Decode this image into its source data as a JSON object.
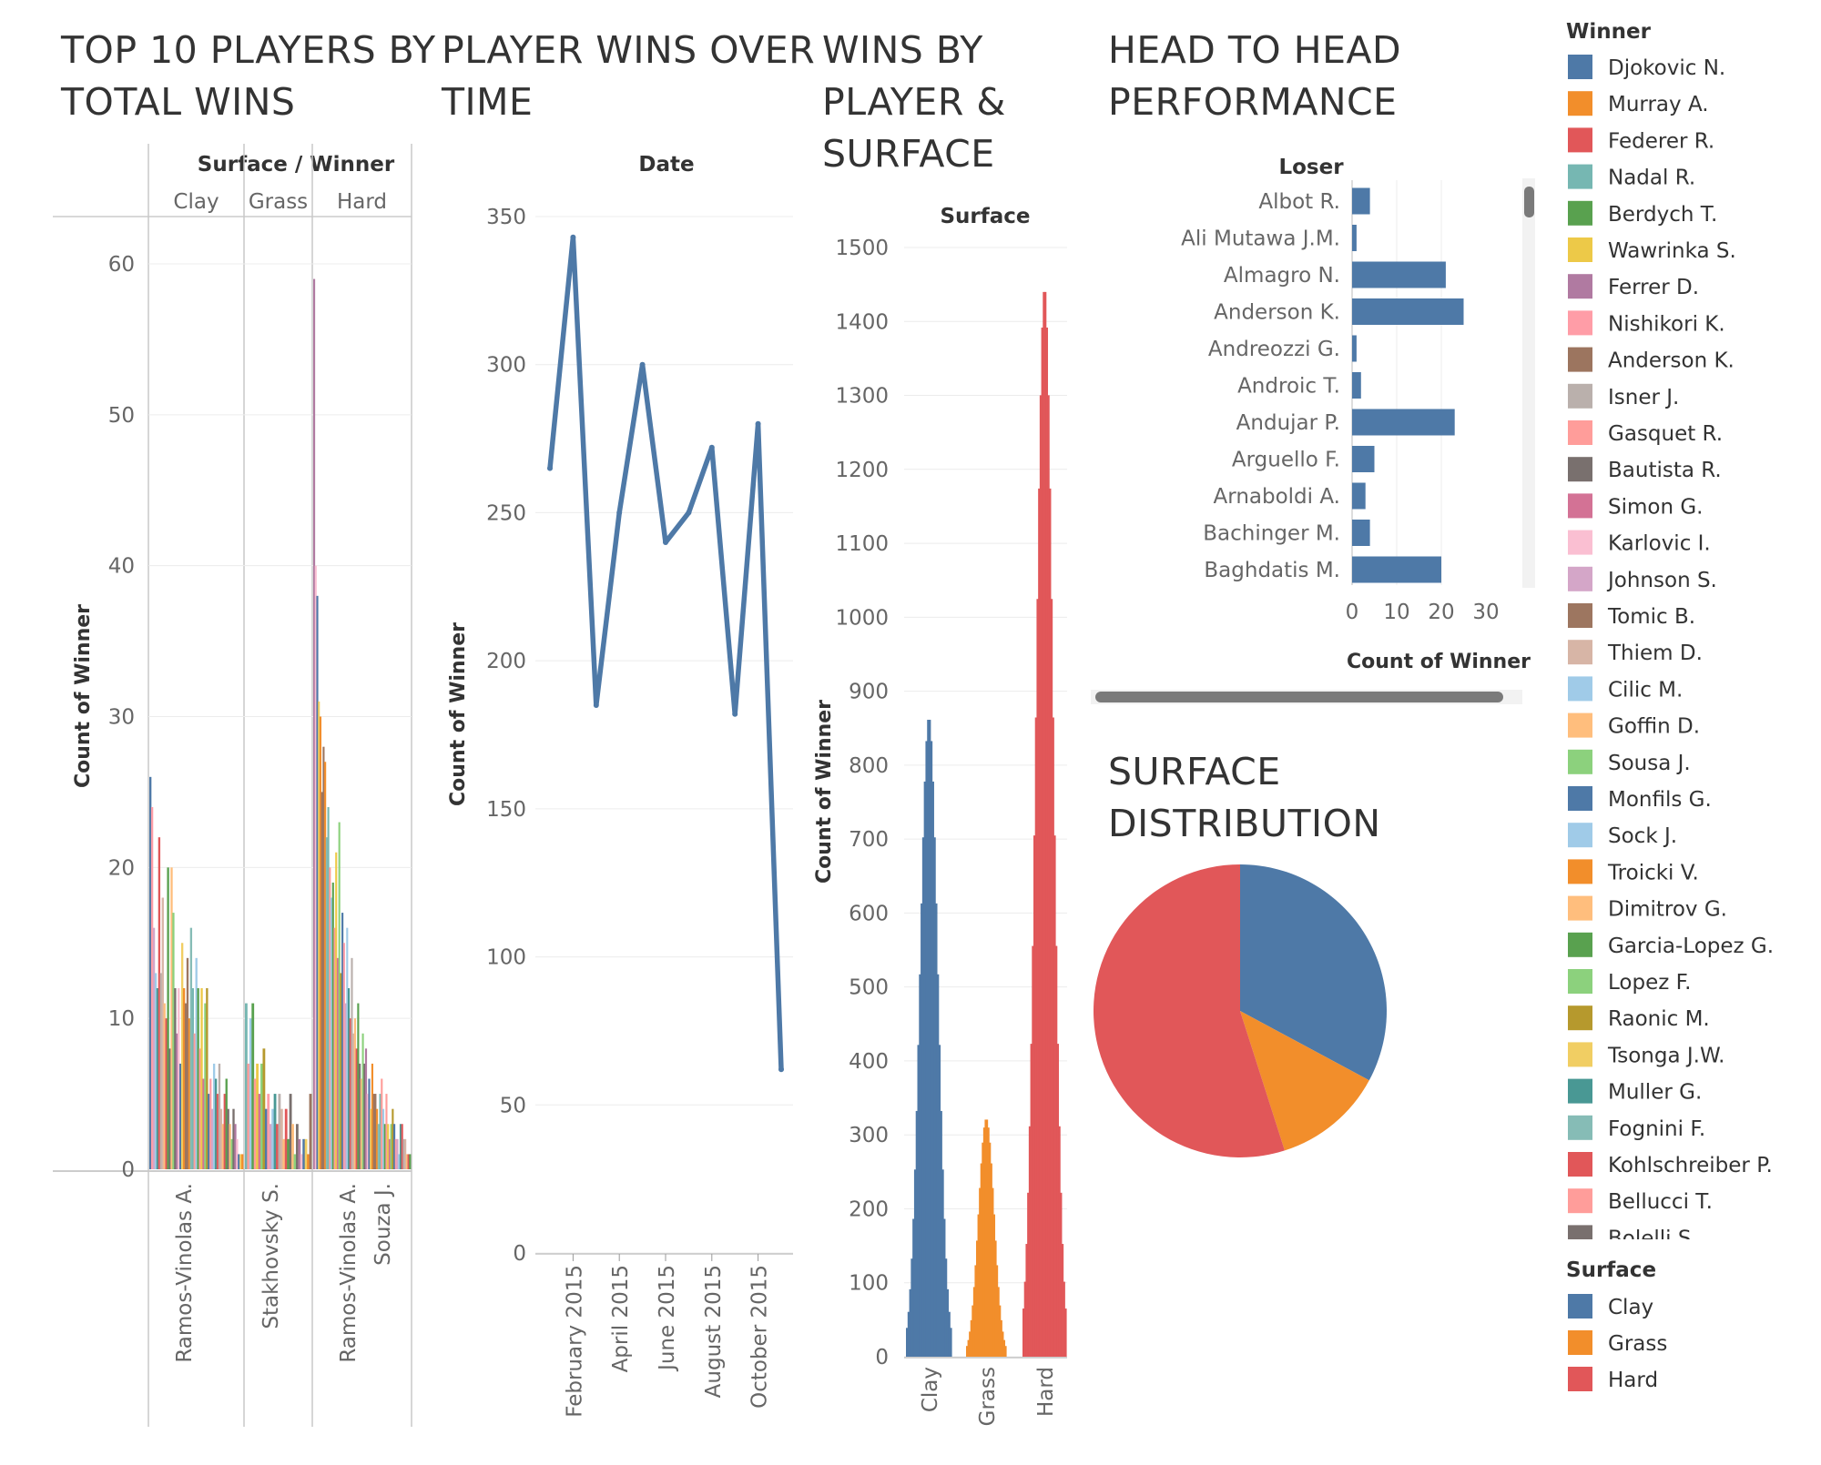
{
  "titles": {
    "top10": [
      "TOP 10 PLAYERS BY",
      "TOTAL WINS"
    ],
    "over_time": [
      "PLAYER WINS OVER",
      "TIME"
    ],
    "by_surface": [
      "WINS BY",
      "PLAYER &",
      "SURFACE"
    ],
    "h2h": [
      "HEAD TO HEAD",
      "PERFORMANCE"
    ],
    "pie": [
      "SURFACE",
      "DISTRIBUTION"
    ]
  },
  "colors": {
    "Clay": "#4e79a7",
    "Grass": "#f28e2b",
    "Hard": "#e15759",
    "line": "#4e79a7",
    "bar": "#4e79a7"
  },
  "chart_data": [
    {
      "type": "bar",
      "id": "top10",
      "header": "Surface / Winner",
      "panels": [
        "Clay",
        "Grass",
        "Hard"
      ],
      "ylabel": "Count of Winner",
      "ylim": [
        0,
        63
      ],
      "yticks": [
        0,
        10,
        20,
        30,
        40,
        50,
        60
      ],
      "panel_labels": [
        [
          "Ramos-Vinolas A."
        ],
        [
          "Stakhovsky S."
        ],
        [
          "Ramos-Vinolas A.",
          "Souza J."
        ]
      ],
      "series": [
        {
          "name": "Clay",
          "values": [
            26,
            24,
            16,
            13,
            12,
            22,
            13,
            18,
            11,
            10,
            20,
            8,
            20,
            17,
            12,
            9,
            12,
            7,
            15,
            12,
            11,
            14,
            10,
            16,
            12,
            9,
            14,
            12,
            8,
            12,
            6,
            11,
            12,
            5,
            6,
            4,
            7,
            6,
            5,
            7,
            4,
            3,
            5,
            6,
            4,
            3,
            2,
            4,
            3,
            2,
            1,
            1,
            1
          ]
        },
        {
          "name": "Grass",
          "values": [
            11,
            7,
            10,
            11,
            6,
            7,
            5,
            7,
            8,
            4,
            5,
            3,
            4,
            5,
            3,
            5,
            4,
            2,
            4,
            2,
            5,
            3,
            1,
            3,
            2,
            1,
            2,
            2,
            1,
            5
          ]
        },
        {
          "name": "Hard",
          "values": [
            59,
            40,
            38,
            31,
            30,
            25,
            28,
            27,
            22,
            24,
            20,
            18,
            19,
            16,
            21,
            14,
            23,
            13,
            17,
            15,
            11,
            16,
            12,
            10,
            14,
            9,
            10,
            8,
            11,
            7,
            6,
            9,
            7,
            8,
            5,
            6,
            4,
            7,
            5,
            5,
            4,
            3,
            5,
            6,
            4,
            3,
            5,
            3,
            2,
            3,
            4,
            3,
            2,
            2,
            1,
            3,
            3,
            2,
            2,
            1,
            1,
            1
          ]
        }
      ]
    },
    {
      "type": "line",
      "id": "over_time",
      "header": "Date",
      "ylabel": "Count of Winner",
      "ylim": [
        0,
        350
      ],
      "yticks": [
        0,
        50,
        100,
        150,
        200,
        250,
        300,
        350
      ],
      "x": [
        "2015-01",
        "2015-02",
        "2015-03",
        "2015-04",
        "2015-05",
        "2015-06",
        "2015-07",
        "2015-08",
        "2015-09",
        "2015-10",
        "2015-11"
      ],
      "xticks": [
        "February 2015",
        "April 2015",
        "June 2015",
        "August 2015",
        "October 2015"
      ],
      "values": [
        265,
        343,
        185,
        250,
        300,
        240,
        250,
        272,
        182,
        280,
        62
      ]
    },
    {
      "type": "bar",
      "id": "by_surface",
      "header": "Surface",
      "ylabel": "Count of Winner",
      "ylim": [
        0,
        1500
      ],
      "yticks": [
        0,
        100,
        200,
        300,
        400,
        500,
        600,
        700,
        800,
        900,
        1000,
        1100,
        1200,
        1300,
        1400,
        1500
      ],
      "categories": [
        "Clay",
        "Grass",
        "Hard"
      ],
      "totals": [
        865,
        322,
        1446
      ]
    },
    {
      "type": "bar",
      "id": "h2h",
      "orientation": "horizontal",
      "header": "Loser",
      "xlabel": "Count of Winner",
      "xticks": [
        "0",
        "10",
        "20",
        "30"
      ],
      "categories": [
        "Albot R.",
        "Ali Mutawa J.M.",
        "Almagro N.",
        "Anderson K.",
        "Andreozzi G.",
        "Androic T.",
        "Andujar P.",
        "Arguello F.",
        "Arnaboldi A.",
        "Bachinger M.",
        "Baghdatis M."
      ],
      "values": [
        4,
        1,
        21,
        25,
        1,
        2,
        23,
        5,
        3,
        4,
        20
      ]
    },
    {
      "type": "pie",
      "id": "pie",
      "categories": [
        "Clay",
        "Grass",
        "Hard"
      ],
      "values": [
        865,
        322,
        1446
      ]
    }
  ],
  "legend": {
    "winner_title": "Winner",
    "winners": [
      {
        "name": "Djokovic N.",
        "color": "#4e79a7"
      },
      {
        "name": "Murray A.",
        "color": "#f28e2b"
      },
      {
        "name": "Federer R.",
        "color": "#e15759"
      },
      {
        "name": "Nadal R.",
        "color": "#76b7b2"
      },
      {
        "name": "Berdych T.",
        "color": "#59a14f"
      },
      {
        "name": "Wawrinka S.",
        "color": "#edc948"
      },
      {
        "name": "Ferrer D.",
        "color": "#b07aa1"
      },
      {
        "name": "Nishikori K.",
        "color": "#ff9da7"
      },
      {
        "name": "Anderson K.",
        "color": "#9c755f"
      },
      {
        "name": "Isner J.",
        "color": "#bab0ac"
      },
      {
        "name": "Gasquet R.",
        "color": "#ff9d9a"
      },
      {
        "name": "Bautista R.",
        "color": "#79706e"
      },
      {
        "name": "Simon G.",
        "color": "#d37295"
      },
      {
        "name": "Karlovic I.",
        "color": "#fabfd2"
      },
      {
        "name": "Johnson S.",
        "color": "#d4a6c8"
      },
      {
        "name": "Tomic B.",
        "color": "#9d7660"
      },
      {
        "name": "Thiem D.",
        "color": "#d7b5a6"
      },
      {
        "name": "Cilic M.",
        "color": "#a0cbe8"
      },
      {
        "name": "Goffin D.",
        "color": "#ffbe7d"
      },
      {
        "name": "Sousa J.",
        "color": "#8cd17d"
      },
      {
        "name": "Monfils G.",
        "color": "#4e79a7"
      },
      {
        "name": "Sock J.",
        "color": "#a0cbe8"
      },
      {
        "name": "Troicki V.",
        "color": "#f28e2b"
      },
      {
        "name": "Dimitrov G.",
        "color": "#ffbe7d"
      },
      {
        "name": "Garcia-Lopez G.",
        "color": "#59a14f"
      },
      {
        "name": "Lopez F.",
        "color": "#8cd17d"
      },
      {
        "name": "Raonic M.",
        "color": "#b6992d"
      },
      {
        "name": "Tsonga J.W.",
        "color": "#f1ce63"
      },
      {
        "name": "Muller G.",
        "color": "#499894"
      },
      {
        "name": "Fognini F.",
        "color": "#86bcb6"
      },
      {
        "name": "Kohlschreiber P.",
        "color": "#e15759"
      },
      {
        "name": "Bellucci T.",
        "color": "#ff9d9a"
      },
      {
        "name": "Bolelli S.",
        "color": "#79706e"
      }
    ],
    "surface_title": "Surface",
    "surfaces": [
      {
        "name": "Clay",
        "color": "#4e79a7"
      },
      {
        "name": "Grass",
        "color": "#f28e2b"
      },
      {
        "name": "Hard",
        "color": "#e15759"
      }
    ]
  }
}
